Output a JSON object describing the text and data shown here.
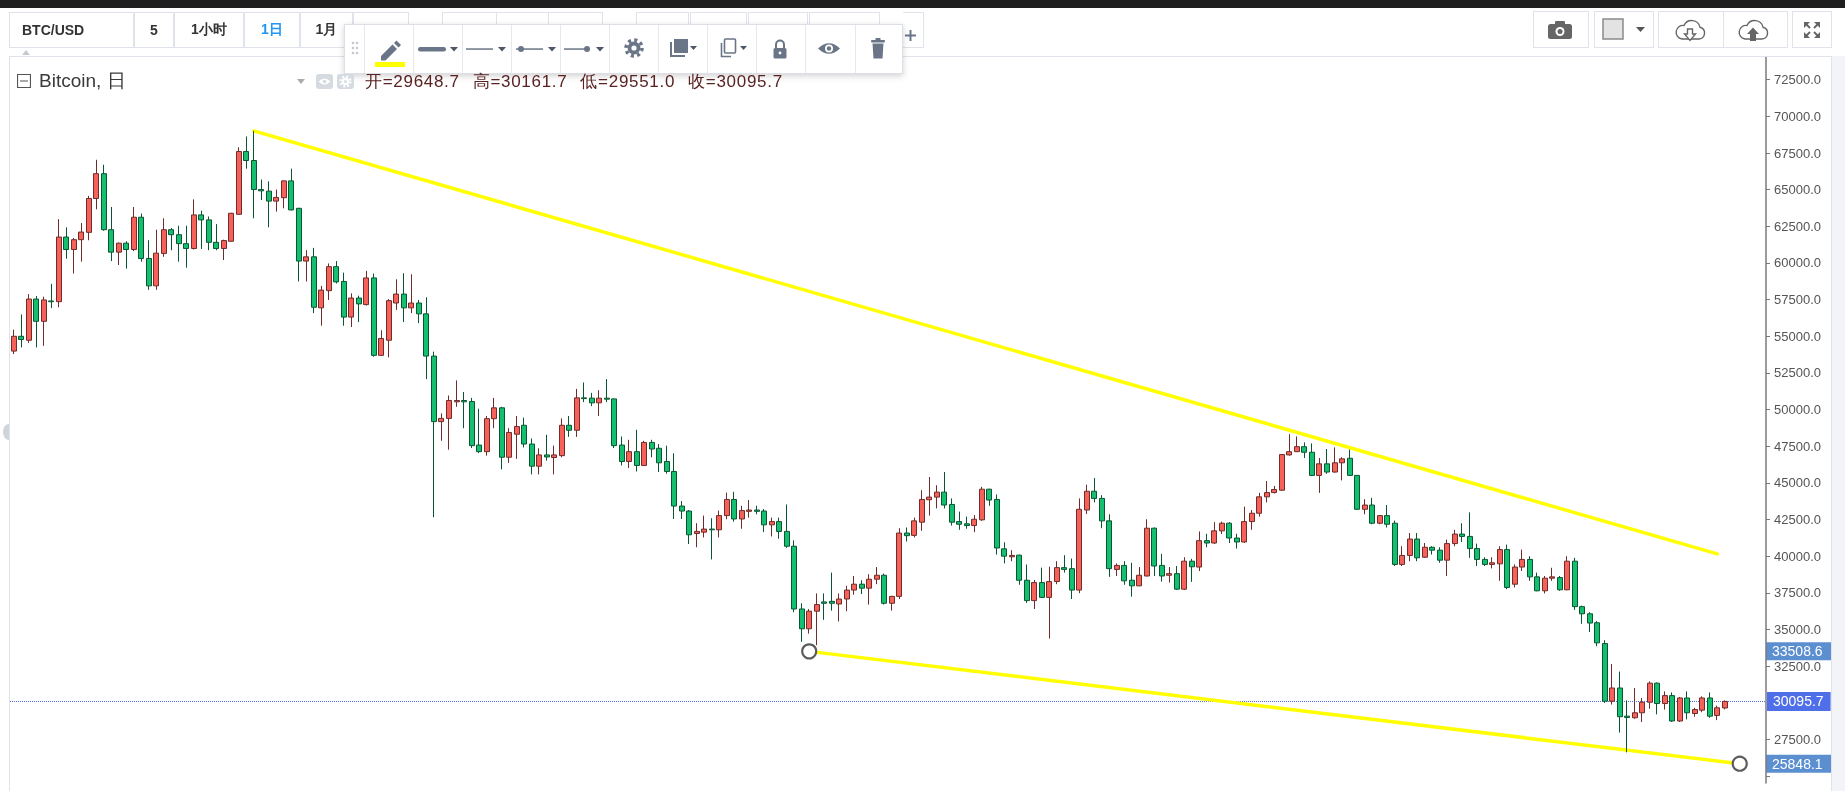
{
  "chart_data": {
    "type": "candlestick",
    "title": "Bitcoin, 日",
    "subtitle": "开=29648.7 高=30161.7 低=29551.0 收=30095.7",
    "annotations": [
      "BTC/USD",
      "5",
      "1小时",
      "1日",
      "1月",
      "33508.6",
      "25848.1"
    ],
    "categories": [
      null,
      null,
      null,
      null,
      null,
      null,
      null,
      null,
      null,
      null,
      null,
      null,
      null,
      null,
      null,
      null,
      null,
      null,
      null,
      null,
      null,
      null,
      null,
      null,
      null,
      null,
      null,
      null,
      null,
      null,
      null,
      null,
      null,
      null,
      null,
      null,
      null,
      null,
      null,
      null,
      null,
      null,
      null,
      null,
      null,
      null,
      null,
      null,
      null,
      null,
      null,
      null,
      null,
      null,
      null,
      null,
      null,
      null,
      null,
      null,
      null,
      null,
      null,
      null,
      null,
      null,
      null,
      null,
      null,
      null,
      null,
      null,
      null,
      null,
      null,
      null,
      null,
      null,
      null,
      null,
      null,
      null,
      null,
      null,
      null,
      null,
      null,
      null,
      null,
      null,
      null,
      null,
      null,
      null,
      null,
      null,
      null,
      null,
      null,
      null,
      null,
      null,
      null,
      null,
      null,
      null,
      null,
      null,
      null,
      null,
      null,
      null,
      null,
      null,
      null,
      null,
      null,
      null,
      null,
      null,
      null,
      null,
      null,
      null,
      null,
      null,
      null,
      null,
      null,
      null,
      null,
      null,
      null,
      null,
      null,
      null,
      null,
      null,
      null,
      null,
      null,
      null,
      null,
      null,
      null,
      null,
      null,
      null,
      null,
      null,
      null,
      null,
      null,
      null,
      null,
      null,
      null,
      null,
      null,
      null,
      null,
      null,
      null,
      null,
      null,
      null,
      null,
      null,
      null,
      null,
      null,
      null,
      null,
      null,
      null,
      null,
      null,
      null,
      null,
      null,
      null,
      null,
      null,
      null,
      null,
      null,
      null,
      null,
      null,
      null,
      null,
      null,
      null,
      null,
      null,
      null,
      null,
      null,
      null,
      null,
      null,
      null,
      null,
      null,
      null,
      null,
      null,
      null,
      null,
      null,
      null,
      null,
      null,
      null,
      null,
      null,
      null,
      null,
      null,
      null,
      null,
      null,
      null,
      null,
      null,
      null,
      null,
      null,
      null,
      null,
      null,
      null,
      null,
      null
    ],
    "ohlc": [
      [
        53990,
        55450,
        53790,
        55000
      ],
      [
        55000,
        56490,
        54240,
        54780
      ],
      [
        54730,
        57880,
        54550,
        57540
      ],
      [
        57540,
        57750,
        54240,
        56020
      ],
      [
        56020,
        57700,
        54350,
        57480
      ],
      [
        57410,
        58580,
        56920,
        57360
      ],
      [
        57360,
        62990,
        56980,
        61770
      ],
      [
        61770,
        62430,
        60290,
        60920
      ],
      [
        60920,
        61710,
        59280,
        61590
      ],
      [
        61590,
        62720,
        60090,
        62110
      ],
      [
        62090,
        64580,
        61550,
        64400
      ],
      [
        64400,
        67040,
        63660,
        66090
      ],
      [
        66090,
        66700,
        62200,
        62270
      ],
      [
        62270,
        63820,
        60130,
        60740
      ],
      [
        60740,
        61400,
        59860,
        61350
      ],
      [
        61350,
        61480,
        59610,
        60920
      ],
      [
        60920,
        63820,
        60810,
        63120
      ],
      [
        63120,
        63370,
        60090,
        60310
      ],
      [
        60310,
        61550,
        58170,
        58440
      ],
      [
        58440,
        62270,
        58170,
        60670
      ],
      [
        60650,
        63050,
        60420,
        62270
      ],
      [
        62270,
        62380,
        60870,
        61930
      ],
      [
        61930,
        62540,
        60090,
        61320
      ],
      [
        61320,
        62540,
        59680,
        60990
      ],
      [
        60990,
        64340,
        60920,
        63280
      ],
      [
        63280,
        63570,
        60960,
        62940
      ],
      [
        62940,
        63170,
        60870,
        61410
      ],
      [
        61410,
        62650,
        60870,
        60990
      ],
      [
        60990,
        61590,
        60200,
        61530
      ],
      [
        61480,
        63420,
        61450,
        63390
      ],
      [
        63320,
        67890,
        63300,
        67600
      ],
      [
        67600,
        68630,
        66430,
        66990
      ],
      [
        66990,
        69010,
        63050,
        65010
      ],
      [
        65010,
        65690,
        64290,
        64920
      ],
      [
        64900,
        65570,
        62430,
        64220
      ],
      [
        64220,
        65010,
        63500,
        64470
      ],
      [
        64450,
        65640,
        63730,
        65600
      ],
      [
        65600,
        66430,
        63580,
        63620
      ],
      [
        63730,
        63760,
        58740,
        60130
      ],
      [
        60130,
        60870,
        58740,
        60420
      ],
      [
        60420,
        61030,
        56580,
        56980
      ],
      [
        56940,
        58440,
        55720,
        58150
      ],
      [
        58110,
        59970,
        57480,
        59750
      ],
      [
        59750,
        60130,
        58600,
        58710
      ],
      [
        58740,
        59340,
        55720,
        56310
      ],
      [
        56310,
        57930,
        55630,
        57610
      ],
      [
        57610,
        57770,
        55970,
        57210
      ],
      [
        57160,
        59460,
        57100,
        58980
      ],
      [
        58980,
        59280,
        53610,
        53700
      ],
      [
        53700,
        55410,
        53650,
        54850
      ],
      [
        54730,
        57540,
        53560,
        57430
      ],
      [
        57270,
        58890,
        56800,
        57880
      ],
      [
        57880,
        59300,
        55970,
        56940
      ],
      [
        56940,
        59230,
        56580,
        57270
      ],
      [
        57270,
        57480,
        55900,
        56530
      ],
      [
        56530,
        57660,
        52080,
        53650
      ],
      [
        53650,
        53950,
        42660,
        49180
      ],
      [
        49180,
        49740,
        47870,
        49400
      ],
      [
        49400,
        50960,
        47270,
        50620
      ],
      [
        50530,
        51990,
        50190,
        50620
      ],
      [
        50620,
        51200,
        48730,
        50530
      ],
      [
        50550,
        50800,
        47380,
        47540
      ],
      [
        47580,
        50060,
        47040,
        47130
      ],
      [
        47130,
        49560,
        46860,
        49380
      ],
      [
        49380,
        50800,
        48730,
        50120
      ],
      [
        50120,
        50190,
        45920,
        46750
      ],
      [
        46750,
        48730,
        46370,
        48440
      ],
      [
        48320,
        49560,
        46640,
        48840
      ],
      [
        48930,
        49450,
        47420,
        47650
      ],
      [
        47650,
        48030,
        45580,
        46140
      ],
      [
        46140,
        47360,
        45580,
        46910
      ],
      [
        46910,
        48280,
        46520,
        46770
      ],
      [
        46730,
        47540,
        45580,
        46910
      ],
      [
        46860,
        49400,
        46750,
        48930
      ],
      [
        48930,
        49560,
        48140,
        48590
      ],
      [
        48590,
        51410,
        48140,
        50800
      ],
      [
        50800,
        51850,
        50510,
        50750
      ],
      [
        50780,
        51140,
        50240,
        50460
      ],
      [
        50460,
        51320,
        49560,
        50780
      ],
      [
        50780,
        52080,
        50510,
        50710
      ],
      [
        50730,
        50760,
        47380,
        47540
      ],
      [
        47580,
        48170,
        46190,
        46460
      ],
      [
        46460,
        47940,
        46010,
        47130
      ],
      [
        47130,
        48620,
        45780,
        46190
      ],
      [
        46190,
        47870,
        46150,
        47760
      ],
      [
        47760,
        47940,
        46750,
        47310
      ],
      [
        47360,
        47650,
        45740,
        46370
      ],
      [
        46460,
        47540,
        45630,
        45780
      ],
      [
        45780,
        47020,
        42540,
        43420
      ],
      [
        43420,
        43760,
        42540,
        43080
      ],
      [
        43080,
        43150,
        40830,
        41460
      ],
      [
        41550,
        42250,
        40610,
        41690
      ],
      [
        41640,
        42770,
        41280,
        41850
      ],
      [
        41850,
        42590,
        39780,
        41800
      ],
      [
        41800,
        43110,
        41280,
        42770
      ],
      [
        42770,
        44340,
        42520,
        43870
      ],
      [
        43870,
        44390,
        42360,
        42540
      ],
      [
        42540,
        43440,
        41870,
        43110
      ],
      [
        43060,
        43830,
        42630,
        43150
      ],
      [
        43150,
        43440,
        42860,
        43060
      ],
      [
        43080,
        43220,
        41640,
        42140
      ],
      [
        42140,
        42630,
        41350,
        42360
      ],
      [
        42360,
        42630,
        41190,
        41690
      ],
      [
        41690,
        43530,
        40570,
        40680
      ],
      [
        40680,
        41080,
        36180,
        36400
      ],
      [
        36400,
        36790,
        34160,
        35050
      ],
      [
        35050,
        36400,
        34720,
        36250
      ],
      [
        36250,
        37460,
        33930,
        36700
      ],
      [
        36880,
        37460,
        35660,
        36790
      ],
      [
        36920,
        38880,
        36290,
        36790
      ],
      [
        36740,
        37460,
        35550,
        37080
      ],
      [
        37080,
        37980,
        36250,
        37690
      ],
      [
        37690,
        38650,
        37370,
        38090
      ],
      [
        38090,
        38360,
        37420,
        37820
      ],
      [
        37820,
        38770,
        36700,
        38430
      ],
      [
        38430,
        39260,
        38090,
        38700
      ],
      [
        38700,
        38810,
        36700,
        36790
      ],
      [
        36790,
        37300,
        36290,
        37260
      ],
      [
        37260,
        41910,
        37080,
        41580
      ],
      [
        41580,
        41960,
        41010,
        41400
      ],
      [
        41420,
        42630,
        41280,
        42410
      ],
      [
        42320,
        44500,
        41730,
        43870
      ],
      [
        43850,
        45400,
        42770,
        44030
      ],
      [
        44030,
        44840,
        43260,
        44370
      ],
      [
        44370,
        45740,
        43260,
        43490
      ],
      [
        43530,
        43940,
        42090,
        42320
      ],
      [
        42360,
        43040,
        41800,
        42180
      ],
      [
        42210,
        42700,
        41870,
        42090
      ],
      [
        42090,
        42810,
        41640,
        42520
      ],
      [
        42480,
        44730,
        42410,
        44570
      ],
      [
        44570,
        44600,
        43440,
        43830
      ],
      [
        43870,
        44210,
        40110,
        40560
      ],
      [
        40500,
        40950,
        39510,
        40000
      ],
      [
        39960,
        40410,
        39660,
        40050
      ],
      [
        40070,
        40110,
        38050,
        38360
      ],
      [
        38360,
        39440,
        36810,
        36970
      ],
      [
        36970,
        38380,
        36400,
        38200
      ],
      [
        38200,
        39220,
        37150,
        37190
      ],
      [
        37190,
        39280,
        34380,
        38270
      ],
      [
        38270,
        39660,
        38090,
        39220
      ],
      [
        39220,
        40070,
        38880,
        39100
      ],
      [
        39150,
        39840,
        37080,
        37690
      ],
      [
        37690,
        43940,
        37480,
        43200
      ],
      [
        43150,
        44880,
        42880,
        44430
      ],
      [
        44430,
        45330,
        43670,
        43940
      ],
      [
        43940,
        44160,
        41910,
        42410
      ],
      [
        42410,
        42860,
        38590,
        39150
      ],
      [
        39100,
        39510,
        38650,
        39370
      ],
      [
        39370,
        39660,
        38050,
        38320
      ],
      [
        38360,
        39550,
        37240,
        37980
      ],
      [
        37980,
        39260,
        37950,
        38700
      ],
      [
        38650,
        42520,
        38620,
        41910
      ],
      [
        41910,
        41960,
        38650,
        39330
      ],
      [
        39370,
        40160,
        38270,
        38650
      ],
      [
        38700,
        39260,
        38200,
        38810
      ],
      [
        38810,
        39330,
        37690,
        37750
      ],
      [
        37750,
        39930,
        37690,
        39660
      ],
      [
        39660,
        39820,
        38250,
        39280
      ],
      [
        39260,
        41690,
        38990,
        41060
      ],
      [
        41060,
        41530,
        40610,
        40900
      ],
      [
        40900,
        42320,
        40830,
        41730
      ],
      [
        41730,
        42360,
        41510,
        42250
      ],
      [
        42250,
        42320,
        40900,
        41240
      ],
      [
        41240,
        41530,
        40520,
        40970
      ],
      [
        40970,
        43380,
        40900,
        42360
      ],
      [
        42360,
        43150,
        41800,
        42930
      ],
      [
        42930,
        44320,
        42700,
        44050
      ],
      [
        44050,
        45130,
        43670,
        44340
      ],
      [
        44340,
        44790,
        44280,
        44550
      ],
      [
        44500,
        46970,
        44480,
        46930
      ],
      [
        46910,
        48320,
        46860,
        47130
      ],
      [
        47130,
        48170,
        47100,
        47470
      ],
      [
        47470,
        47760,
        46700,
        47090
      ],
      [
        47090,
        47690,
        45480,
        45510
      ],
      [
        45510,
        46700,
        44320,
        46300
      ],
      [
        46300,
        47310,
        45620,
        45740
      ],
      [
        45740,
        47420,
        45690,
        46370
      ],
      [
        46370,
        46750,
        45170,
        46640
      ],
      [
        46680,
        47270,
        45480,
        45510
      ],
      [
        45510,
        45540,
        43150,
        43200
      ],
      [
        43200,
        43890,
        42860,
        43490
      ],
      [
        43490,
        43980,
        42180,
        42250
      ],
      [
        42250,
        42810,
        42180,
        42770
      ],
      [
        42770,
        43490,
        41960,
        42180
      ],
      [
        42250,
        42430,
        39330,
        39440
      ],
      [
        39440,
        40680,
        39330,
        40050
      ],
      [
        40050,
        41580,
        39660,
        41170
      ],
      [
        41170,
        41580,
        39660,
        39890
      ],
      [
        39930,
        40900,
        39890,
        40610
      ],
      [
        40610,
        40680,
        40110,
        40410
      ],
      [
        40410,
        40610,
        39550,
        39730
      ],
      [
        39730,
        41130,
        38650,
        40860
      ],
      [
        40860,
        41800,
        40680,
        41510
      ],
      [
        41510,
        42250,
        40970,
        41350
      ],
      [
        41350,
        42990,
        39890,
        40520
      ],
      [
        40520,
        40860,
        39330,
        39780
      ],
      [
        39780,
        39930,
        39330,
        39440
      ],
      [
        39440,
        39930,
        39170,
        39550
      ],
      [
        39480,
        40680,
        38320,
        40450
      ],
      [
        40450,
        40790,
        37750,
        37870
      ],
      [
        38090,
        39440,
        37870,
        39260
      ],
      [
        39260,
        40450,
        38990,
        39780
      ],
      [
        39780,
        40000,
        38320,
        38590
      ],
      [
        38590,
        38880,
        37610,
        37640
      ],
      [
        37640,
        38650,
        37460,
        38500
      ],
      [
        38500,
        39210,
        38320,
        38590
      ],
      [
        38540,
        38650,
        37640,
        37710
      ],
      [
        37710,
        40000,
        37680,
        39660
      ],
      [
        39660,
        39890,
        36340,
        36560
      ],
      [
        36560,
        36630,
        35390,
        36070
      ],
      [
        36070,
        36180,
        34830,
        35440
      ],
      [
        35460,
        35570,
        33860,
        34090
      ],
      [
        34040,
        34270,
        29990,
        30110
      ],
      [
        30110,
        32650,
        29880,
        31010
      ],
      [
        31010,
        32130,
        27970,
        29050
      ],
      [
        29090,
        30170,
        26620,
        29000
      ],
      [
        28980,
        31010,
        28910,
        29320
      ],
      [
        29320,
        30330,
        28690,
        30040
      ],
      [
        30040,
        31460,
        29590,
        31340
      ],
      [
        31340,
        31390,
        29210,
        29950
      ],
      [
        29950,
        30780,
        29540,
        30490
      ],
      [
        30490,
        30710,
        28690,
        28760
      ],
      [
        28760,
        30400,
        28690,
        30330
      ],
      [
        30330,
        30780,
        28870,
        29320
      ],
      [
        29270,
        29660,
        29050,
        29540
      ],
      [
        29500,
        30440,
        29360,
        30330
      ],
      [
        30330,
        30710,
        28980,
        29090
      ],
      [
        29140,
        29810,
        28820,
        29660
      ],
      [
        29648.7,
        30161.7,
        29551.0,
        30095.7
      ],
      null,
      null,
      null,
      null,
      null
    ],
    "colors": [
      "#f6625a",
      "#14c06f",
      "#f6625a",
      "#14c06f",
      "#f6625a",
      "#14c06f",
      "#f6625a",
      "#14c06f",
      "#f6625a",
      "#f6625a",
      "#f6625a",
      "#f6625a",
      "#14c06f",
      "#14c06f",
      "#f6625a",
      "#14c06f",
      "#f6625a",
      "#14c06f",
      "#14c06f",
      "#f6625a",
      "#f6625a",
      "#14c06f",
      "#14c06f",
      "#14c06f",
      "#f6625a",
      "#14c06f",
      "#14c06f",
      "#14c06f",
      "#f6625a",
      "#f6625a",
      "#f6625a",
      "#14c06f",
      "#14c06f",
      "#14c06f",
      "#14c06f",
      "#f6625a",
      "#f6625a",
      "#14c06f",
      "#14c06f",
      "#f6625a",
      "#14c06f",
      "#f6625a",
      "#f6625a",
      "#14c06f",
      "#14c06f",
      "#f6625a",
      "#14c06f",
      "#f6625a",
      "#14c06f",
      "#f6625a",
      "#f6625a",
      "#f6625a",
      "#14c06f",
      "#f6625a",
      "#14c06f",
      "#14c06f",
      "#14c06f",
      "#f6625a",
      "#f6625a",
      "#f6625a",
      "#14c06f",
      "#14c06f",
      "#14c06f",
      "#f6625a",
      "#f6625a",
      "#14c06f",
      "#f6625a",
      "#f6625a",
      "#14c06f",
      "#14c06f",
      "#f6625a",
      "#14c06f",
      "#f6625a",
      "#f6625a",
      "#14c06f",
      "#f6625a",
      "#14c06f",
      "#14c06f",
      "#f6625a",
      "#14c06f",
      "#14c06f",
      "#14c06f",
      "#f6625a",
      "#14c06f",
      "#f6625a",
      "#14c06f",
      "#14c06f",
      "#14c06f",
      "#14c06f",
      "#14c06f",
      "#14c06f",
      "#f6625a",
      "#f6625a",
      "#14c06f",
      "#f6625a",
      "#f6625a",
      "#14c06f",
      "#f6625a",
      "#f6625a",
      "#14c06f",
      "#14c06f",
      "#f6625a",
      "#14c06f",
      "#14c06f",
      "#14c06f",
      "#14c06f",
      "#f6625a",
      "#f6625a",
      "#14c06f",
      "#14c06f",
      "#f6625a",
      "#f6625a",
      "#f6625a",
      "#14c06f",
      "#f6625a",
      "#f6625a",
      "#14c06f",
      "#f6625a",
      "#f6625a",
      "#14c06f",
      "#f6625a",
      "#f6625a",
      "#f6625a",
      "#f6625a",
      "#14c06f",
      "#14c06f",
      "#14c06f",
      "#14c06f",
      "#f6625a",
      "#f6625a",
      "#14c06f",
      "#14c06f",
      "#14c06f",
      "#f6625a",
      "#14c06f",
      "#14c06f",
      "#f6625a",
      "#14c06f",
      "#f6625a",
      "#f6625a",
      "#14c06f",
      "#14c06f",
      "#f6625a",
      "#f6625a",
      "#14c06f",
      "#14c06f",
      "#14c06f",
      "#f6625a",
      "#14c06f",
      "#14c06f",
      "#f6625a",
      "#f6625a",
      "#14c06f",
      "#14c06f",
      "#f6625a",
      "#14c06f",
      "#f6625a",
      "#14c06f",
      "#f6625a",
      "#14c06f",
      "#f6625a",
      "#f6625a",
      "#14c06f",
      "#14c06f",
      "#f6625a",
      "#f6625a",
      "#f6625a",
      "#f6625a",
      "#f6625a",
      "#f6625a",
      "#f6625a",
      "#f6625a",
      "#14c06f",
      "#14c06f",
      "#f6625a",
      "#14c06f",
      "#f6625a",
      "#f6625a",
      "#14c06f",
      "#14c06f",
      "#f6625a",
      "#14c06f",
      "#f6625a",
      "#14c06f",
      "#14c06f",
      "#f6625a",
      "#f6625a",
      "#14c06f",
      "#f6625a",
      "#14c06f",
      "#14c06f",
      "#f6625a",
      "#f6625a",
      "#14c06f",
      "#14c06f",
      "#14c06f",
      "#14c06f",
      "#f6625a",
      "#f6625a",
      "#14c06f",
      "#f6625a",
      "#f6625a",
      "#14c06f",
      "#14c06f",
      "#f6625a",
      "#f6625a",
      "#14c06f",
      "#f6625a",
      "#14c06f",
      "#14c06f",
      "#14c06f",
      "#14c06f",
      "#14c06f",
      "#f6625a",
      "#14c06f",
      "#14c06f",
      "#f6625a",
      "#f6625a",
      "#f6625a",
      "#14c06f",
      "#f6625a",
      "#14c06f",
      "#f6625a",
      "#14c06f",
      "#f6625a",
      "#f6625a",
      "#14c06f",
      "#f6625a",
      "#f6625a",
      null,
      null,
      null,
      null,
      null
    ],
    "series": [
      {
        "type": "line",
        "color": "#ffff00",
        "values": [
          null,
          null,
          null,
          null,
          null,
          null,
          null,
          null,
          null,
          null,
          null,
          null,
          null,
          null,
          null,
          null,
          null,
          null,
          null,
          null,
          null,
          null,
          null,
          null,
          null,
          null,
          null,
          null,
          null,
          null,
          null,
          null,
          69010,
          null,
          null,
          null,
          null,
          null,
          null,
          null,
          null,
          null,
          null,
          null,
          null,
          null,
          null,
          null,
          null,
          null,
          null,
          null,
          null,
          null,
          null,
          null,
          null,
          null,
          null,
          null,
          null,
          null,
          null,
          null,
          null,
          null,
          null,
          null,
          null,
          null,
          null,
          null,
          null,
          null,
          null,
          null,
          null,
          null,
          null,
          null,
          null,
          null,
          null,
          null,
          null,
          null,
          null,
          null,
          null,
          null,
          null,
          null,
          null,
          null,
          null,
          null,
          null,
          null,
          null,
          null,
          null,
          null,
          null,
          null,
          null,
          null,
          null,
          null,
          null,
          null,
          null,
          null,
          null,
          null,
          null,
          null,
          null,
          null,
          null,
          null,
          null,
          null,
          null,
          null,
          null,
          null,
          null,
          null,
          null,
          null,
          null,
          null,
          null,
          null,
          null,
          null,
          null,
          null,
          null,
          null,
          null,
          null,
          null,
          null,
          null,
          null,
          null,
          null,
          null,
          null,
          null,
          null,
          null,
          null,
          null,
          null,
          null,
          null,
          null,
          null,
          null,
          null,
          null,
          null,
          null,
          null,
          null,
          null,
          null,
          null,
          null,
          null,
          null,
          null,
          null,
          null,
          null,
          null,
          null,
          null,
          null,
          null,
          null,
          null,
          null,
          null,
          null,
          null,
          null,
          null,
          null,
          null,
          null,
          null,
          null,
          null,
          null,
          null,
          null,
          null,
          null,
          null,
          null,
          null,
          null,
          null,
          null,
          null,
          null,
          null,
          null,
          null,
          null,
          null,
          null,
          null,
          null,
          null,
          null,
          null,
          null,
          null,
          null,
          null,
          null,
          null,
          null,
          40160,
          null,
          null,
          null,
          null,
          null,
          null
        ]
      },
      {
        "type": "line",
        "color": "#ffff00",
        "marker": "circle",
        "values": [
          null,
          null,
          null,
          null,
          null,
          null,
          null,
          null,
          null,
          null,
          null,
          null,
          null,
          null,
          null,
          null,
          null,
          null,
          null,
          null,
          null,
          null,
          null,
          null,
          null,
          null,
          null,
          null,
          null,
          null,
          null,
          null,
          null,
          null,
          null,
          null,
          null,
          null,
          null,
          null,
          null,
          null,
          null,
          null,
          null,
          null,
          null,
          null,
          null,
          null,
          null,
          null,
          null,
          null,
          null,
          null,
          null,
          null,
          null,
          null,
          null,
          null,
          null,
          null,
          null,
          null,
          null,
          null,
          null,
          null,
          null,
          null,
          null,
          null,
          null,
          null,
          null,
          null,
          null,
          null,
          null,
          null,
          null,
          null,
          null,
          null,
          null,
          null,
          null,
          null,
          null,
          null,
          null,
          null,
          null,
          null,
          null,
          null,
          null,
          null,
          null,
          null,
          null,
          null,
          null,
          null,
          33508.6,
          null,
          null,
          null,
          null,
          null,
          null,
          null,
          null,
          null,
          null,
          null,
          null,
          null,
          null,
          null,
          null,
          null,
          null,
          null,
          null,
          null,
          null,
          null,
          null,
          null,
          null,
          null,
          null,
          null,
          null,
          null,
          null,
          null,
          null,
          null,
          null,
          null,
          null,
          null,
          null,
          null,
          null,
          null,
          null,
          null,
          null,
          null,
          null,
          null,
          null,
          null,
          null,
          null,
          null,
          null,
          null,
          null,
          null,
          null,
          null,
          null,
          null,
          null,
          null,
          null,
          null,
          null,
          null,
          null,
          null,
          null,
          null,
          null,
          null,
          null,
          null,
          null,
          null,
          null,
          null,
          null,
          null,
          null,
          null,
          null,
          null,
          null,
          null,
          null,
          null,
          null,
          null,
          null,
          null,
          null,
          null,
          null,
          null,
          null,
          null,
          null,
          null,
          null,
          null,
          null,
          null,
          null,
          null,
          null,
          null,
          null,
          null,
          null,
          null,
          null,
          null,
          null,
          null,
          null,
          null,
          null,
          null,
          null,
          25848.1,
          null,
          null,
          null
        ]
      }
    ],
    "ref_lines": [
      {
        "axis": "y",
        "value": 30095.7,
        "label": "30095.7",
        "color": "#4f6fe8",
        "line_style": "dotted"
      }
    ],
    "ylim": [
      24530,
      74050
    ],
    "yticks": [
      {
        "value": 25000,
        "label": null
      },
      {
        "value": 27500,
        "label": "27500.0"
      },
      {
        "value": 32500,
        "label": "32500.0"
      },
      {
        "value": 35000,
        "label": "35000.0"
      },
      {
        "value": 37500,
        "label": "37500.0"
      },
      {
        "value": 40000,
        "label": "40000.0"
      },
      {
        "value": 42500,
        "label": "42500.0"
      },
      {
        "value": 45000,
        "label": "45000.0"
      },
      {
        "value": 47500,
        "label": "47500.0"
      },
      {
        "value": 50000,
        "label": "50000.0"
      },
      {
        "value": 52500,
        "label": "52500.0"
      },
      {
        "value": 55000,
        "label": "55000.0"
      },
      {
        "value": 57500,
        "label": "57500.0"
      },
      {
        "value": 60000,
        "label": "60000.0"
      },
      {
        "value": 62500,
        "label": "62500.0"
      },
      {
        "value": 65000,
        "label": "65000.0"
      },
      {
        "value": 67500,
        "label": "67500.0"
      },
      {
        "value": 70000,
        "label": "70000.0"
      },
      {
        "value": 72500,
        "label": "72500.0"
      }
    ]
  }
}
